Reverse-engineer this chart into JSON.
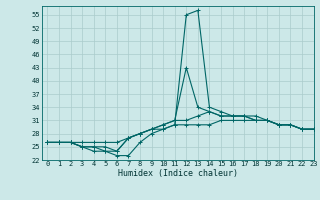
{
  "xlabel": "Humidex (Indice chaleur)",
  "bg_color": "#cce8e8",
  "grid_color": "#aacccc",
  "line_color": "#006666",
  "xlim": [
    -0.5,
    23
  ],
  "ylim": [
    22,
    57
  ],
  "yticks": [
    22,
    25,
    28,
    31,
    34,
    37,
    40,
    43,
    46,
    49,
    52,
    55
  ],
  "xticks": [
    0,
    1,
    2,
    3,
    4,
    5,
    6,
    7,
    8,
    9,
    10,
    11,
    12,
    13,
    14,
    15,
    16,
    17,
    18,
    19,
    20,
    21,
    22,
    23
  ],
  "series": [
    [
      26,
      26,
      26,
      25,
      24,
      24,
      23,
      23,
      26,
      28,
      29,
      30,
      55,
      56,
      34,
      33,
      32,
      32,
      32,
      31,
      30,
      30,
      29,
      29
    ],
    [
      26,
      26,
      26,
      25,
      25,
      24,
      24,
      27,
      28,
      29,
      30,
      31,
      43,
      34,
      33,
      32,
      32,
      32,
      31,
      31,
      30,
      30,
      29,
      29
    ],
    [
      26,
      26,
      26,
      25,
      25,
      25,
      24,
      27,
      28,
      29,
      30,
      31,
      31,
      32,
      33,
      32,
      32,
      32,
      31,
      31,
      30,
      30,
      29,
      29
    ],
    [
      26,
      26,
      26,
      26,
      26,
      26,
      26,
      27,
      28,
      29,
      29,
      30,
      30,
      30,
      30,
      31,
      31,
      31,
      31,
      31,
      30,
      30,
      29,
      29
    ]
  ],
  "xlabel_fontsize": 6,
  "tick_labelsize": 5,
  "linewidth": 0.8,
  "markersize": 2.5
}
